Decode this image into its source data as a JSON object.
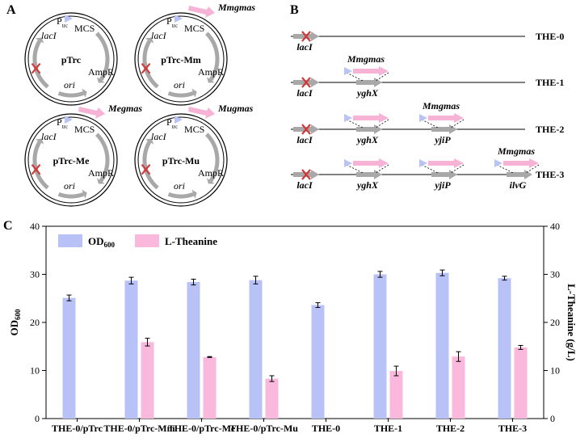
{
  "panels": {
    "a": "A",
    "b": "B",
    "c": "C"
  },
  "plasmids": [
    {
      "name": "pTrc",
      "insert": ""
    },
    {
      "name": "pTrc-Mm",
      "insert": "Mmgmas"
    },
    {
      "name": "pTrc-Me",
      "insert": "Megmas"
    },
    {
      "name": "pTrc-Mu",
      "insert": "Mugmas"
    }
  ],
  "plasmid_labels": {
    "lacI": "lacI",
    "ptrc_p": "P",
    "ptrc_sub": "trc",
    "mcs": "MCS",
    "ampr": "AmpR",
    "ori": "ori"
  },
  "strains": [
    {
      "name": "THE-0",
      "sites": []
    },
    {
      "name": "THE-1",
      "sites": [
        "yghX"
      ]
    },
    {
      "name": "THE-2",
      "sites": [
        "yghX",
        "yjiP"
      ]
    },
    {
      "name": "THE-3",
      "sites": [
        "yghX",
        "yjiP",
        "ilvG"
      ]
    }
  ],
  "genome_labels": {
    "lacI": "lacI",
    "insert": "Mmgmas"
  },
  "colors": {
    "od": "#b8c2f7",
    "theanine": "#f9b8dc",
    "arrow_gray": "#a8a8a8",
    "pink_arrow": "#f6b3d6",
    "triangle": "#b9c4f5",
    "cross": "#d03a3a"
  },
  "chart_data": {
    "type": "bar",
    "categories": [
      "THE-0/pTrc",
      "THE-0/pTrc-Mm",
      "THE-0/pTrc-Me",
      "THE-0/pTrc-Mu",
      "THE-0",
      "THE-1",
      "THE-2",
      "THE-3"
    ],
    "series": [
      {
        "name_main": "OD",
        "name_sub": "600",
        "axis": "left",
        "values": [
          25.1,
          28.7,
          28.4,
          28.8,
          23.6,
          30.0,
          30.3,
          29.2
        ],
        "errors": [
          0.6,
          0.7,
          0.6,
          0.8,
          0.5,
          0.6,
          0.6,
          0.4
        ]
      },
      {
        "name": "L-Theanine",
        "axis": "right",
        "values": [
          0,
          15.9,
          12.8,
          8.3,
          0,
          9.9,
          12.9,
          14.8
        ],
        "errors": [
          0,
          0.8,
          0.1,
          0.6,
          0,
          1.0,
          1.0,
          0.4
        ]
      }
    ],
    "ylabel_left_main": "OD",
    "ylabel_left_sub": "600",
    "ylabel_right": "L-Theanine (g/L)",
    "ylim": [
      0,
      40
    ],
    "yticks": [
      "0",
      "10",
      "20",
      "30",
      "40"
    ],
    "legend": "top-left"
  }
}
